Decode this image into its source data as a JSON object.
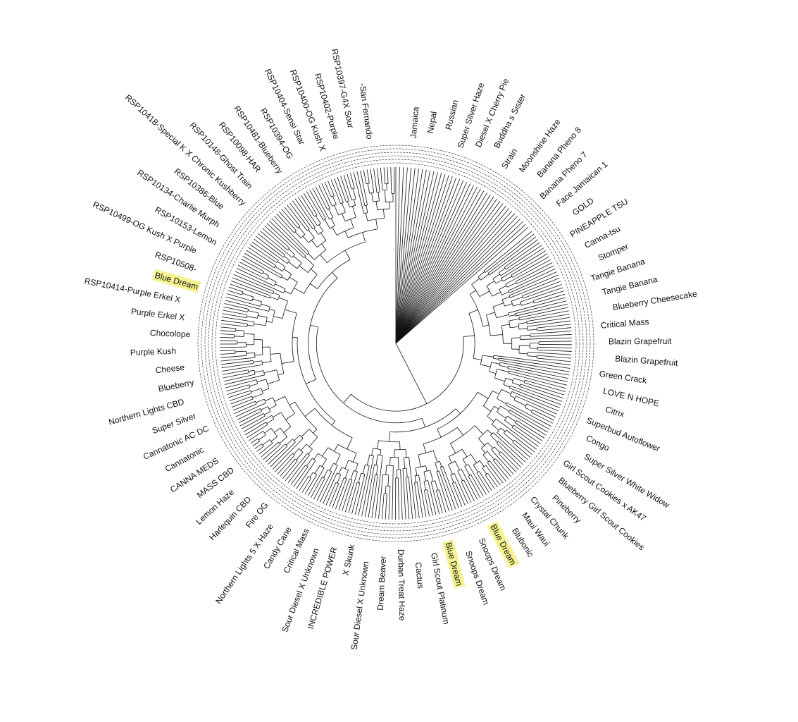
{
  "tree": {
    "leaves": [
      {
        "label": "Jamaica"
      },
      {
        "label": "Nepal"
      },
      {
        "label": "Russian"
      },
      {
        "label": "Super Silver Haze"
      },
      {
        "label": "Diesel X Cherry Pie"
      },
      {
        "label": "Buddha s Sister"
      },
      {
        "label": "Strain"
      },
      {
        "label": "Moonshine Haze"
      },
      {
        "label": "Banana Pheno 8"
      },
      {
        "label": "Banana Pheno 7"
      },
      {
        "label": "Face Jamaican 1"
      },
      {
        "label": "GOLD"
      },
      {
        "label": "PINEAPPLE TSU"
      },
      {
        "label": "Canna-tsu"
      },
      {
        "label": "Stomper"
      },
      {
        "label": "Tangie Banana"
      },
      {
        "label": "Tangie Banana"
      },
      {
        "label": "Blueberry Cheesecake"
      },
      {
        "label": "Critical Mass"
      },
      {
        "label": "Blazin Grapefruit"
      },
      {
        "label": "Blazin Grapefruit"
      },
      {
        "label": "Green Crack"
      },
      {
        "label": "LOVE N HOPE"
      },
      {
        "label": "Citrix"
      },
      {
        "label": "Superbud Autoflower"
      },
      {
        "label": "Congo"
      },
      {
        "label": "Super Silver White Widow"
      },
      {
        "label": "Girl Scout Cookies x AK47"
      },
      {
        "label": "Blueberry Girl Scout Cookies"
      },
      {
        "label": "Pineberry"
      },
      {
        "label": "Crystal Chunk"
      },
      {
        "label": "Maui Waui"
      },
      {
        "label": "Blubonic"
      },
      {
        "label": "Blue Dream",
        "highlight": true
      },
      {
        "label": "Snoops Dream"
      },
      {
        "label": "Snoops Dream"
      },
      {
        "label": "Blue Dream",
        "highlight": true
      },
      {
        "label": "Girl Scout Platinum"
      },
      {
        "label": "Cactus"
      },
      {
        "label": "Durban Treat Haze"
      },
      {
        "label": "Dream Beaver"
      },
      {
        "label": "Sour Diesel X Unknown"
      },
      {
        "label": "X Skunk"
      },
      {
        "label": "INCREDIBLE POWER"
      },
      {
        "label": "Sour Diesel X Unknown"
      },
      {
        "label": "Critical Mass"
      },
      {
        "label": "Candy Cane"
      },
      {
        "label": "Northern Lights 5 X Haze"
      },
      {
        "label": "Fire OG"
      },
      {
        "label": "Harlequin CBD"
      },
      {
        "label": "Lemon Haze"
      },
      {
        "label": "MASS CBD"
      },
      {
        "label": "CANNA MEDS"
      },
      {
        "label": "Cannatonic"
      },
      {
        "label": "Cannatonic AC DC"
      },
      {
        "label": "Super Silver"
      },
      {
        "label": "Northern Lights CBD"
      },
      {
        "label": "Blueberry"
      },
      {
        "label": "Cheese"
      },
      {
        "label": "Purple Kush"
      },
      {
        "label": "Chocolope"
      },
      {
        "label": "Purple Erkel X"
      },
      {
        "label": "RSP10414-Purple Erkel X"
      },
      {
        "label": "Blue Dream",
        "highlight": true
      },
      {
        "label": "RSP10508-"
      },
      {
        "label": "RSP10499-OG Kush X Purple"
      },
      {
        "label": "RSP10153-Lemon"
      },
      {
        "label": "RSP10134-Charlie Murph"
      },
      {
        "label": "RSP10386-Blue"
      },
      {
        "label": "RSP10418-Special K X Chronic Kushberry"
      },
      {
        "label": "RSP10148-Ghost Train"
      },
      {
        "label": "RSP10098-HAR"
      },
      {
        "label": "RSP10481-Blueberry"
      },
      {
        "label": "RSP10394-OG"
      },
      {
        "label": "RSP10404-Sensi Star"
      },
      {
        "label": "RSP10400-OG Kush X"
      },
      {
        "label": "RSP10402-Purple"
      },
      {
        "label": "RSP10397-G4X Sour"
      },
      {
        "label": "-San Fernando"
      }
    ]
  }
}
